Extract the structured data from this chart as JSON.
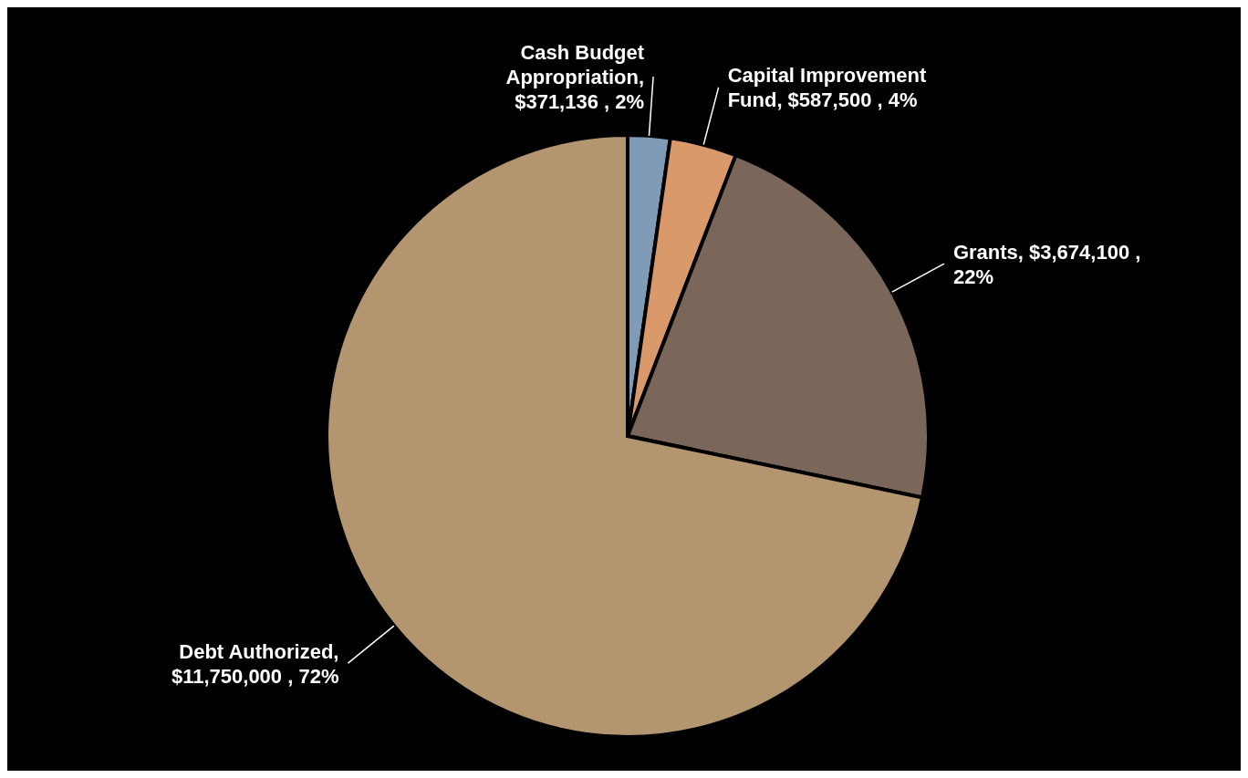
{
  "chart_data": {
    "type": "pie",
    "categories": [
      "Cash Budget Appropriation",
      "Capital Improvement Fund",
      "Grants",
      "Debt Authorized"
    ],
    "values": [
      371136,
      587500,
      3674100,
      11750000
    ],
    "colors": [
      "#7f9bb5",
      "#d9996a",
      "#7a675a",
      "#b39670"
    ],
    "value_labels": [
      ", $371,136 , 2%",
      ",  $587,500 , 4%",
      ",  $3,674,100 , 22%",
      ", $11,750,000 , 72%"
    ]
  }
}
